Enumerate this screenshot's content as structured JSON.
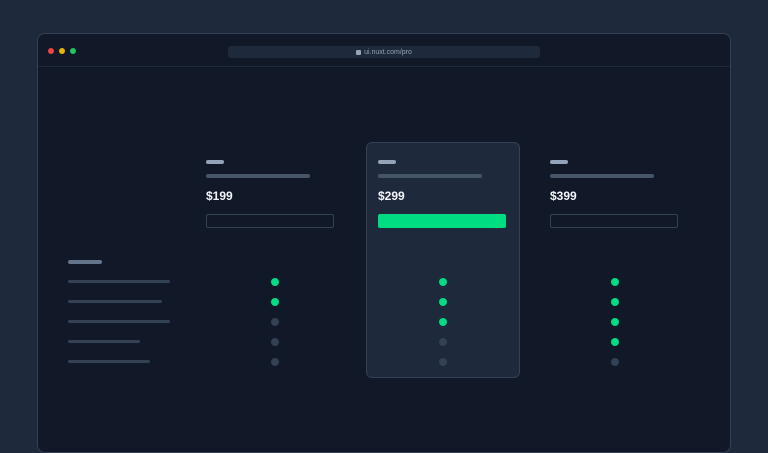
{
  "browser": {
    "url": "ui.nuxt.com/pro"
  },
  "plans": [
    {
      "price": "$199",
      "highlighted": false,
      "features": [
        true,
        true,
        false,
        false,
        false
      ]
    },
    {
      "price": "$299",
      "highlighted": true,
      "features": [
        true,
        true,
        true,
        false,
        false
      ]
    },
    {
      "price": "$399",
      "highlighted": false,
      "features": [
        true,
        true,
        true,
        true,
        false
      ]
    }
  ],
  "colors": {
    "accent": "#00dc82",
    "inactive": "#334155"
  }
}
